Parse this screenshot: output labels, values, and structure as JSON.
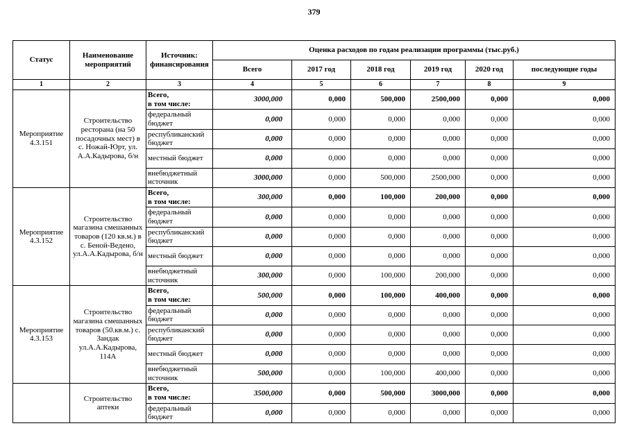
{
  "page": {
    "number": "379"
  },
  "table": {
    "headers": {
      "status": "Статус",
      "name": "Наименование мероприятий",
      "source": "Источник:\nфинансирования",
      "group": "Оценка расходов по годам реализации  программы (тыс.руб.)",
      "years": [
        "Всего",
        "2017 год",
        "2018 год",
        "2019 год",
        "2020 год",
        "последующие годы"
      ],
      "col_numbers": [
        "1",
        "2",
        "3",
        "4",
        "5",
        "6",
        "7",
        "8",
        "9"
      ]
    },
    "blocks": [
      {
        "status": "Мероприятие 4.3.151",
        "name": "Строительство ресторана (на 50 посадочных мест) в с. Ножай-Юрт, ул. А.А.Кадырова, б/н",
        "rows": [
          {
            "source": "Всего,\nв том числе:",
            "total": true,
            "values": [
              "3000,000",
              "0,000",
              "500,000",
              "2500,000",
              "0,000",
              "0,000"
            ]
          },
          {
            "source": "федеральный бюджет",
            "total": false,
            "values": [
              "0,000",
              "0,000",
              "0,000",
              "0,000",
              "0,000",
              "0,000"
            ]
          },
          {
            "source": "республиканский бюджет",
            "total": false,
            "values": [
              "0,000",
              "0,000",
              "0,000",
              "0,000",
              "0,000",
              "0,000"
            ]
          },
          {
            "source": "местный бюджет",
            "total": false,
            "values": [
              "0,000",
              "0,000",
              "0,000",
              "0,000",
              "0,000",
              "0,000"
            ]
          },
          {
            "source": "внебюджетный источник",
            "total": false,
            "values": [
              "3000,000",
              "0,000",
              "500,000",
              "2500,000",
              "0,000",
              "0,000"
            ]
          }
        ]
      },
      {
        "status": "Мероприятие 4.3.152",
        "name": "Строительство магазина смешанных товаров (120 кв.м.) в с. Беной-Ведено, ул.А.А.Кадырова, б/н",
        "rows": [
          {
            "source": "Всего,\nв том числе:",
            "total": true,
            "values": [
              "300,000",
              "0,000",
              "100,000",
              "200,000",
              "0,000",
              "0,000"
            ]
          },
          {
            "source": "федеральный бюджет",
            "total": false,
            "values": [
              "0,000",
              "0,000",
              "0,000",
              "0,000",
              "0,000",
              "0,000"
            ]
          },
          {
            "source": "республиканский бюджет",
            "total": false,
            "values": [
              "0,000",
              "0,000",
              "0,000",
              "0,000",
              "0,000",
              "0,000"
            ]
          },
          {
            "source": "местный бюджет",
            "total": false,
            "values": [
              "0,000",
              "0,000",
              "0,000",
              "0,000",
              "0,000",
              "0,000"
            ]
          },
          {
            "source": "внебюджетный источник",
            "total": false,
            "values": [
              "300,000",
              "0,000",
              "100,000",
              "200,000",
              "0,000",
              "0,000"
            ]
          }
        ]
      },
      {
        "status": "Мероприятие 4.3.153",
        "name": "Строительство магазина смешанных товаров (50.кв.м.) с. Зандак ул.А.А.Кадырова, 114А",
        "rows": [
          {
            "source": "Всего,\nв том числе:",
            "total": true,
            "values": [
              "500,000",
              "0,000",
              "100,000",
              "400,000",
              "0,000",
              "0,000"
            ]
          },
          {
            "source": "федеральный бюджет",
            "total": false,
            "values": [
              "0,000",
              "0,000",
              "0,000",
              "0,000",
              "0,000",
              "0,000"
            ]
          },
          {
            "source": "республиканский бюджет",
            "total": false,
            "values": [
              "0,000",
              "0,000",
              "0,000",
              "0,000",
              "0,000",
              "0,000"
            ]
          },
          {
            "source": "местный бюджет",
            "total": false,
            "values": [
              "0,000",
              "0,000",
              "0,000",
              "0,000",
              "0,000",
              "0,000"
            ]
          },
          {
            "source": "внебюджетный источник",
            "total": false,
            "values": [
              "500,000",
              "0,000",
              "100,000",
              "400,000",
              "0,000",
              "0,000"
            ]
          }
        ]
      },
      {
        "status": "",
        "name": "Строительство аптеки",
        "rows": [
          {
            "source": "Всего,\nв том числе:",
            "total": true,
            "values": [
              "3500,000",
              "0,000",
              "500,000",
              "3000,000",
              "0,000",
              "0,000"
            ]
          },
          {
            "source": "федеральный бюджет",
            "total": false,
            "values": [
              "0,000",
              "0,000",
              "0,000",
              "0,000",
              "0,000",
              "0,000"
            ]
          }
        ]
      }
    ]
  }
}
